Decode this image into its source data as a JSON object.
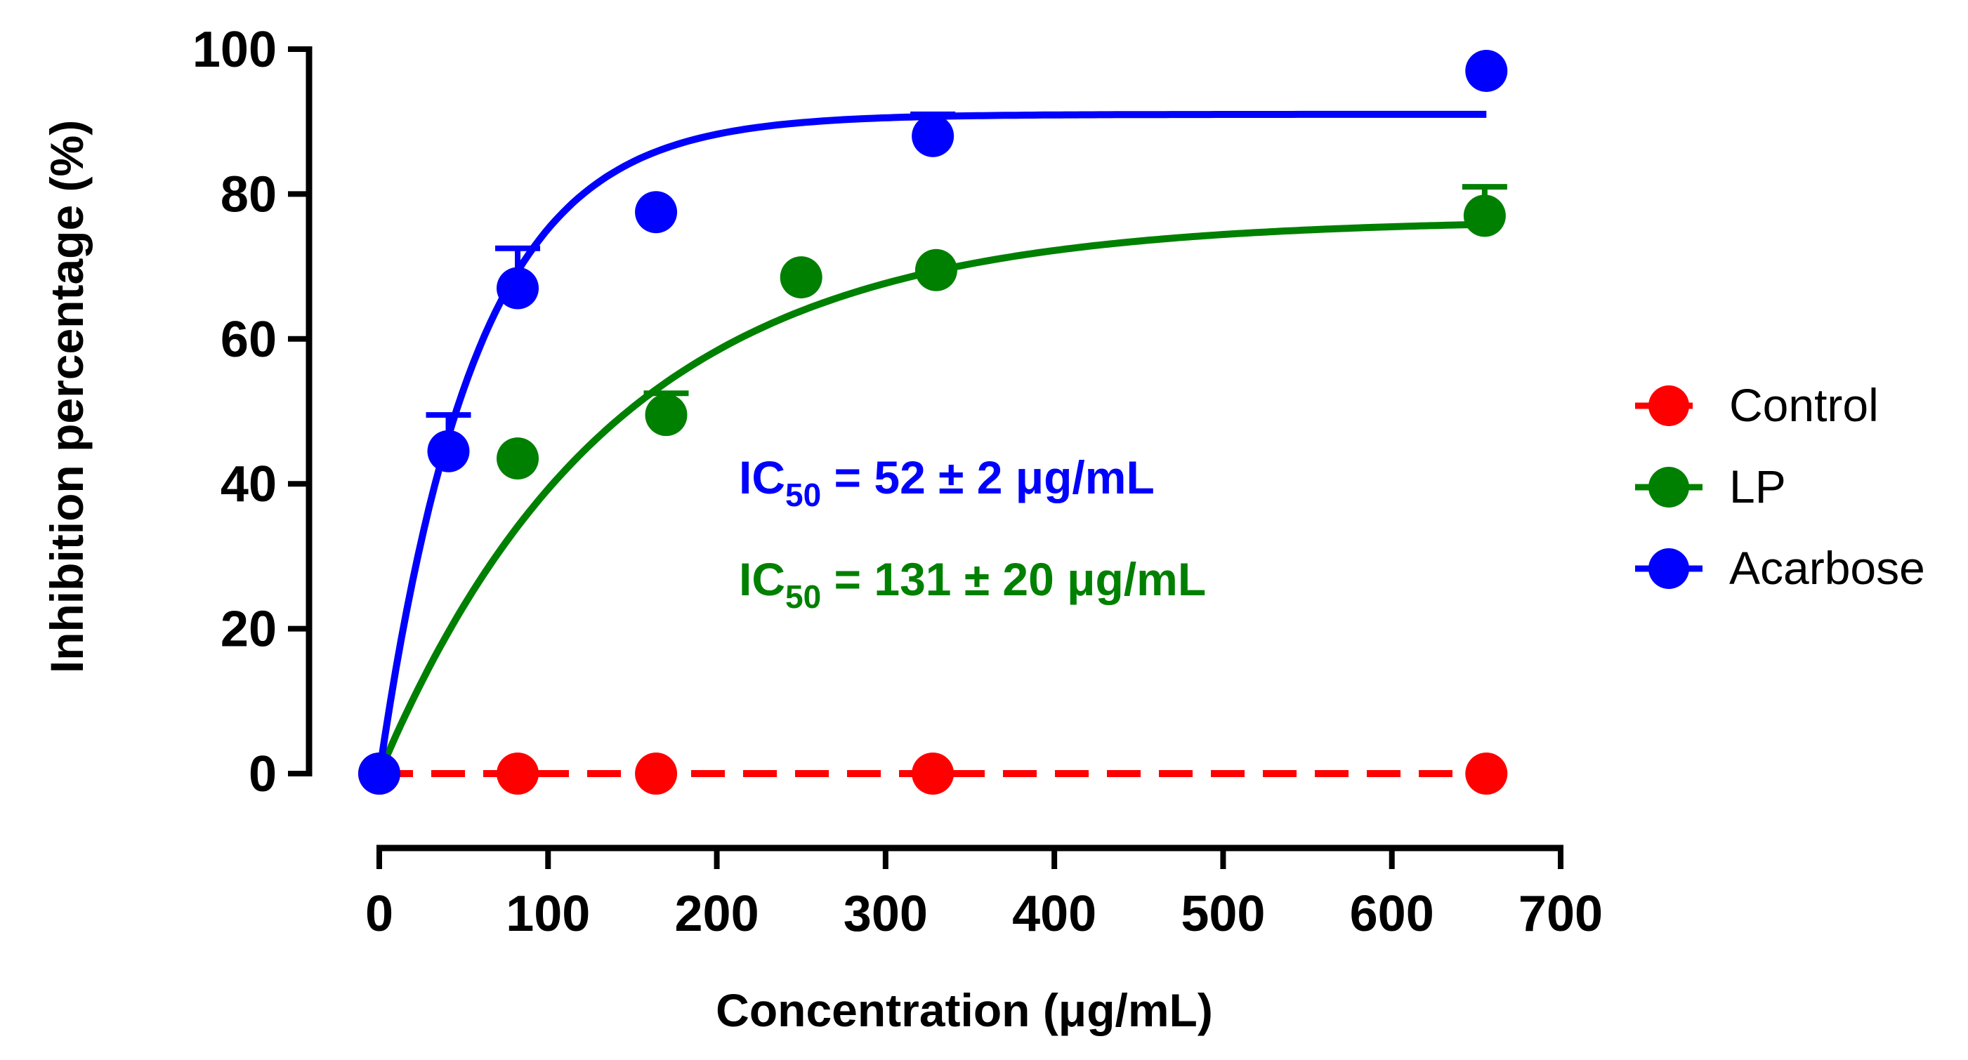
{
  "chart_data": {
    "type": "scatter",
    "title": "",
    "xlabel": "Concentration (μg/mL)",
    "ylabel": "Inhibition percentage (%)",
    "xlim": [
      0,
      700
    ],
    "ylim": [
      0,
      100
    ],
    "xticks": [
      0,
      100,
      200,
      300,
      400,
      500,
      600,
      700
    ],
    "yticks": [
      0,
      20,
      40,
      60,
      80,
      100
    ],
    "xtick_labels": [
      "0",
      "100",
      "200",
      "300",
      "400",
      "500",
      "600",
      "700"
    ],
    "ytick_labels": [
      "0",
      "20",
      "40",
      "60",
      "80",
      "100"
    ],
    "legend_position": "right",
    "series": [
      {
        "name": "Control",
        "color": "#ff0000",
        "line_style": "dashed",
        "x": [
          0,
          82,
          164,
          328,
          656
        ],
        "y": [
          0,
          0,
          0,
          0,
          0
        ],
        "err": [
          0,
          0,
          0,
          0,
          0
        ]
      },
      {
        "name": "LP",
        "color": "#008000",
        "line_style": "solid",
        "x": [
          82,
          170,
          250,
          330,
          655
        ],
        "y": [
          43.5,
          49.5,
          68.5,
          69.5,
          77
        ],
        "err": [
          0,
          3,
          0,
          0,
          4
        ],
        "fit": {
          "model": "one-phase association",
          "plateau": 76.5,
          "k": 0.0072
        }
      },
      {
        "name": "Acarbose",
        "color": "#0000ff",
        "line_style": "solid",
        "x": [
          0,
          41,
          82,
          164,
          328,
          656
        ],
        "y": [
          0,
          44.5,
          67,
          77.5,
          88,
          97
        ],
        "err": [
          0,
          5,
          5.5,
          0,
          3,
          0
        ],
        "fit": {
          "model": "one-phase association",
          "plateau": 91,
          "k": 0.0175
        }
      }
    ],
    "annotations": [
      {
        "prefix": "IC",
        "sub": "50",
        "suffix": " = 52 ± 2 μg/mL",
        "color": "#0000ff"
      },
      {
        "prefix": "IC",
        "sub": "50",
        "suffix": " = 131 ± 20 μg/mL",
        "color": "#008000"
      }
    ]
  }
}
